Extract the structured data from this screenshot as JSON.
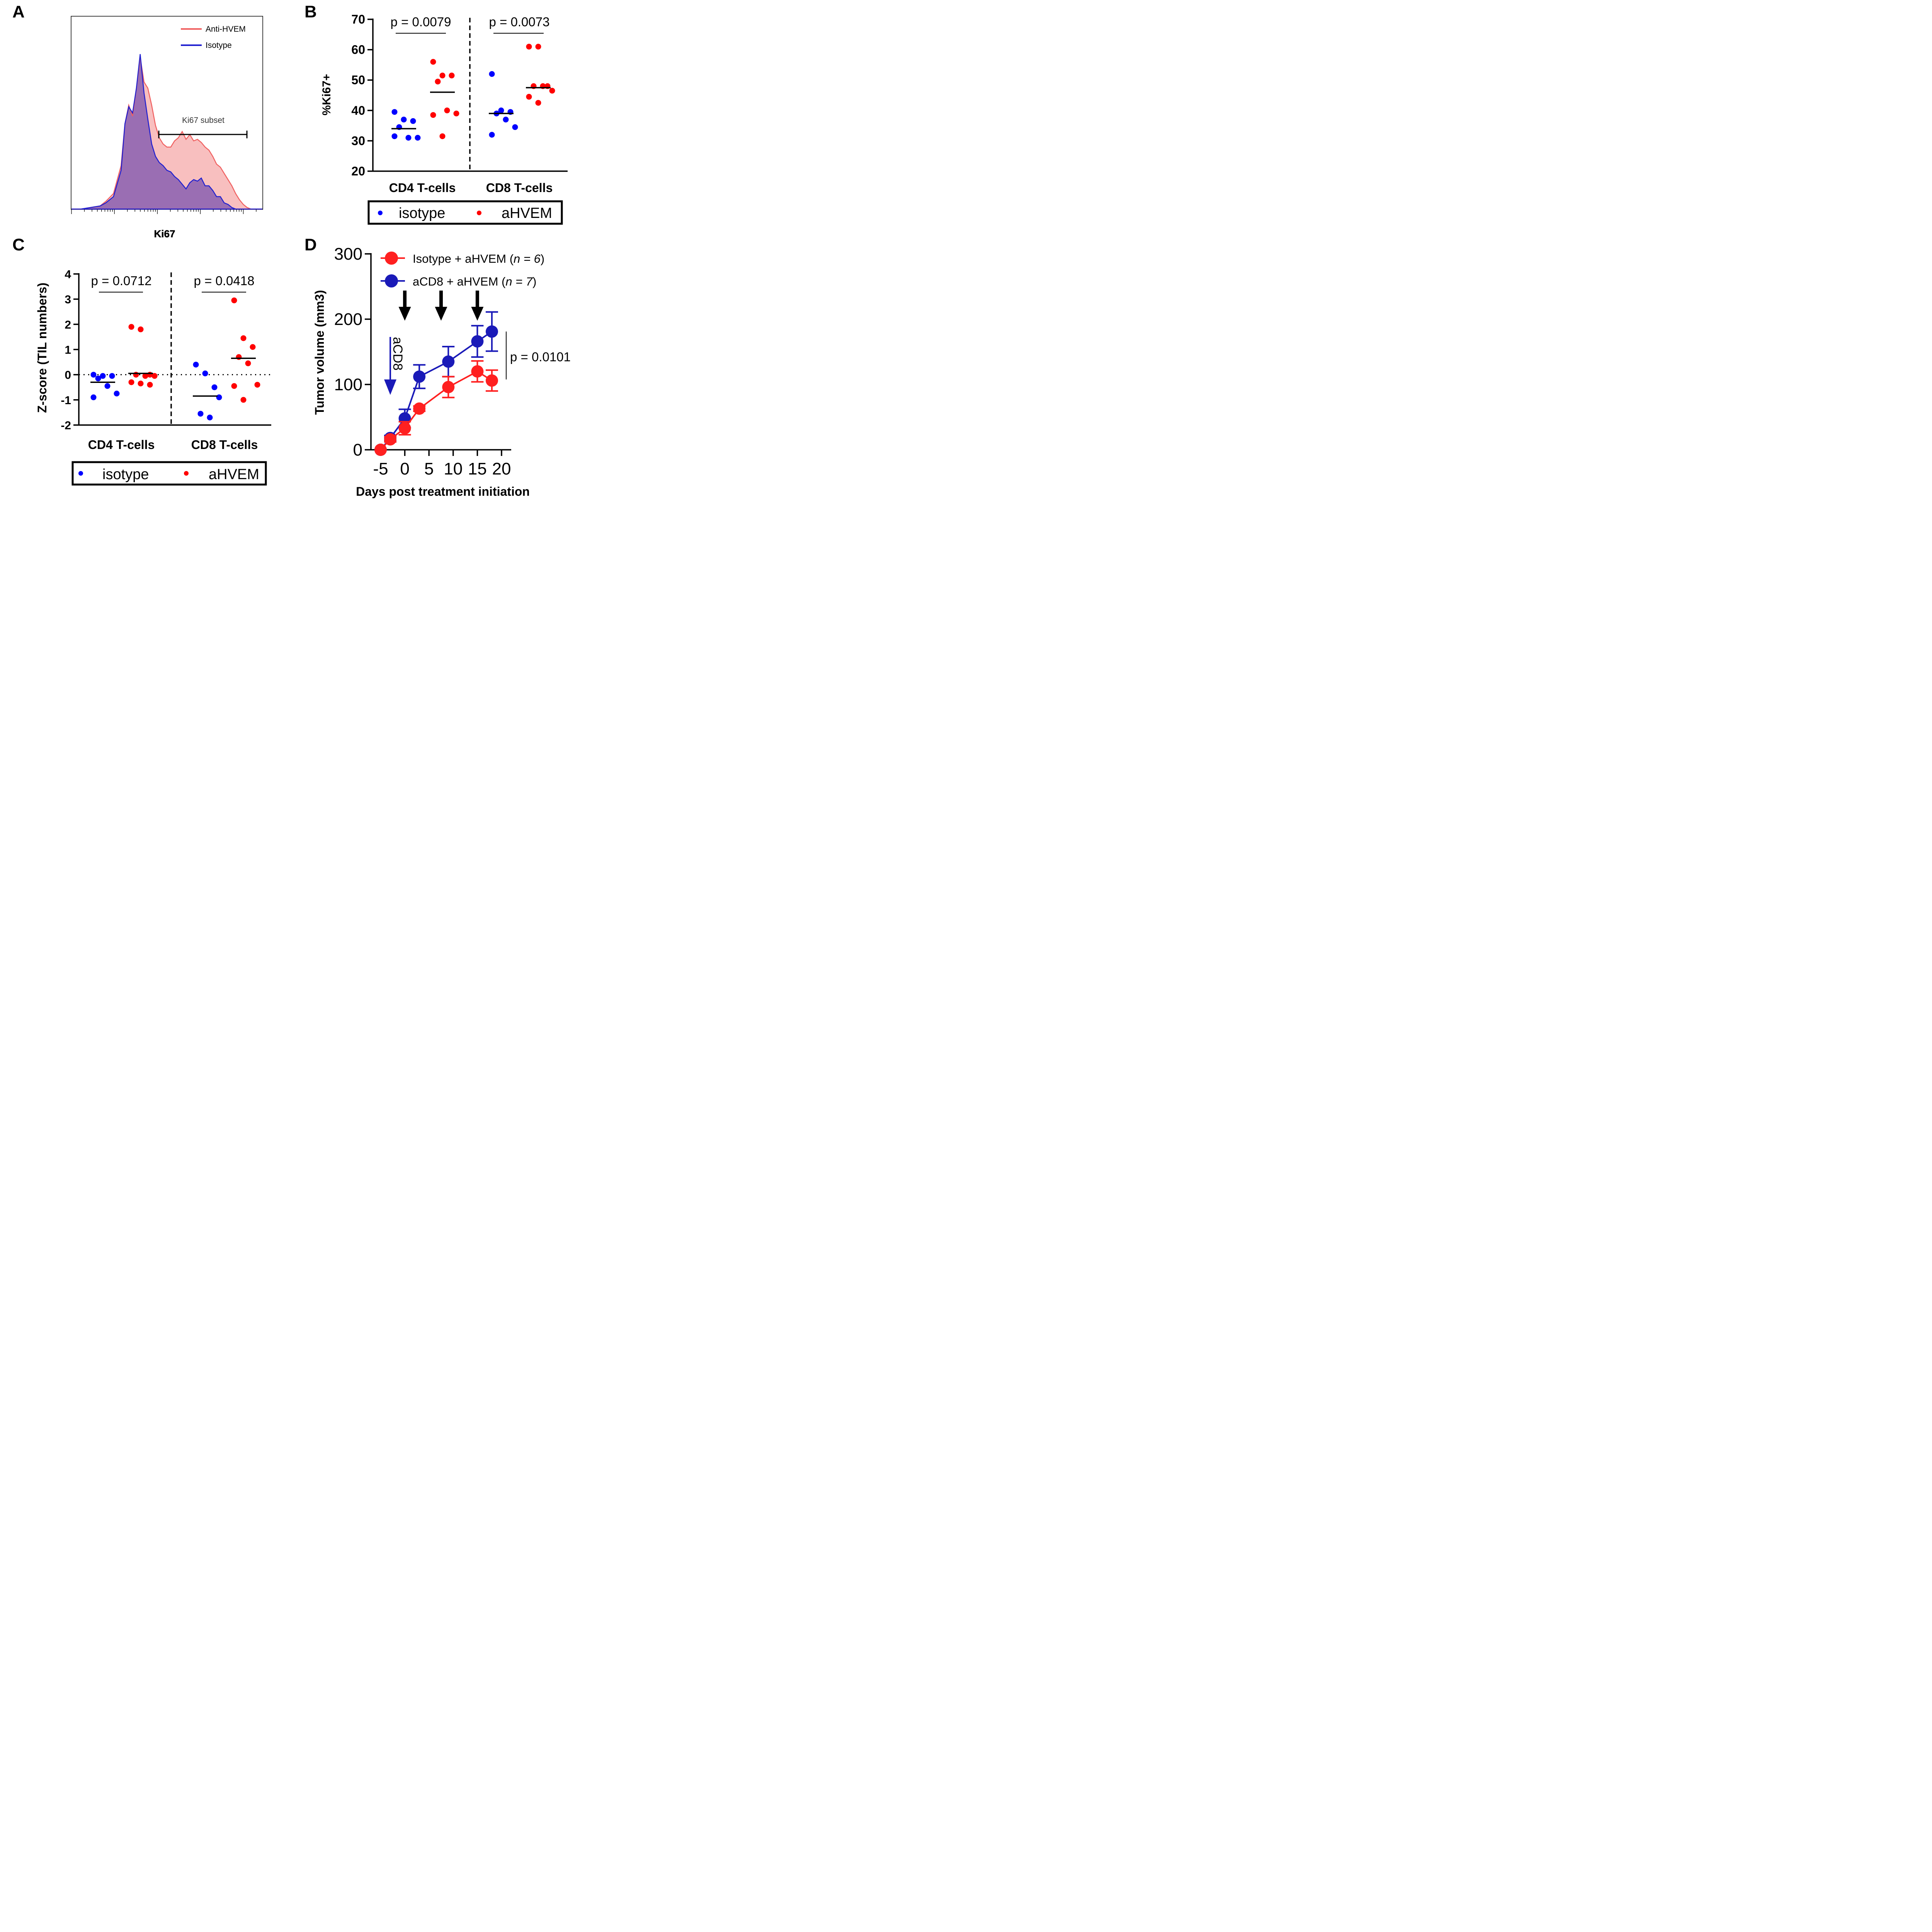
{
  "figure_labels": {
    "a": "A",
    "b": "B",
    "c": "C",
    "d": "D"
  },
  "colors": {
    "isotype": "#0000ff",
    "ahvem": "#ff0000",
    "histo_anti": "#f06060",
    "histo_iso": "#2020d0",
    "overlap": "#8a5fb0",
    "d_red": "#ff2020",
    "d_blue": "#1a1ab8"
  },
  "chart_data": [
    {
      "panel": "A",
      "type": "area",
      "xlabel": "Ki67",
      "legend": [
        "Anti-HVEM",
        "Isotype"
      ],
      "annotation": "Ki67 subset",
      "series": [
        {
          "name": "Anti-HVEM",
          "x": [
            0,
            5,
            10,
            15,
            18,
            22,
            26,
            28,
            30,
            32,
            34,
            36,
            38,
            40,
            42,
            44,
            46,
            48,
            50,
            52,
            54,
            56,
            58,
            60,
            62,
            64,
            66,
            68,
            70,
            72,
            74,
            76,
            78,
            80,
            82,
            84,
            86,
            88,
            90,
            92,
            94,
            96,
            100
          ],
          "y": [
            0,
            0,
            1,
            2,
            5,
            10,
            28,
            55,
            67,
            60,
            78,
            98,
            82,
            78,
            67,
            54,
            46,
            42,
            40,
            40,
            44,
            46,
            50,
            45,
            48,
            44,
            45,
            43,
            40,
            38,
            34,
            29,
            27,
            23,
            19,
            15,
            10,
            6,
            3,
            1,
            0,
            0,
            0
          ]
        },
        {
          "name": "Isotype",
          "x": [
            0,
            5,
            10,
            15,
            18,
            22,
            26,
            28,
            30,
            32,
            34,
            36,
            38,
            40,
            42,
            44,
            46,
            48,
            50,
            52,
            54,
            56,
            58,
            60,
            62,
            64,
            66,
            68,
            70,
            72,
            74,
            76,
            78,
            80,
            82,
            84,
            86,
            88,
            90,
            92,
            94,
            96,
            100
          ],
          "y": [
            0,
            0,
            1,
            2,
            4,
            8,
            25,
            55,
            66,
            62,
            78,
            100,
            75,
            58,
            42,
            34,
            30,
            28,
            25,
            24,
            21,
            19,
            16,
            13,
            17,
            19,
            18,
            20,
            15,
            15,
            12,
            8,
            8,
            4,
            3,
            1,
            0,
            0,
            0,
            0,
            0,
            0,
            0
          ]
        }
      ]
    },
    {
      "panel": "B",
      "type": "scatter",
      "ylabel": "%Ki67+",
      "ylim": [
        20,
        70
      ],
      "yticks": [
        "20",
        "30",
        "40",
        "50",
        "60",
        "70"
      ],
      "categories": [
        "CD4 T-cells",
        "CD8 T-cells"
      ],
      "pvalues": [
        "p = 0.0079",
        "p = 0.0073"
      ],
      "legend": [
        "isotype",
        "aHVEM"
      ],
      "series": [
        {
          "name": "isotype",
          "group": 0,
          "values": [
            39.5,
            37.0,
            36.5,
            34.5,
            31.0,
            31.0,
            31.5
          ],
          "median": 34
        },
        {
          "name": "aHVEM",
          "group": 0,
          "values": [
            56.0,
            51.5,
            51.5,
            49.5,
            40.0,
            39.0,
            38.5,
            31.5
          ],
          "median": 46
        },
        {
          "name": "isotype",
          "group": 1,
          "values": [
            52.0,
            40.0,
            39.5,
            39.0,
            37.0,
            34.5,
            32.0
          ],
          "median": 39
        },
        {
          "name": "aHVEM",
          "group": 1,
          "values": [
            61.0,
            61.0,
            48.0,
            48.0,
            48.0,
            46.5,
            44.5,
            42.5
          ],
          "median": 47.5
        }
      ]
    },
    {
      "panel": "C",
      "type": "scatter",
      "ylabel": "Z-score (TIL numbers)",
      "ylim": [
        -2,
        4
      ],
      "yticks": [
        "-2",
        "-1",
        "0",
        "1",
        "2",
        "3",
        "4"
      ],
      "categories": [
        "CD4 T-cells",
        "CD8 T-cells"
      ],
      "pvalues": [
        "p = 0.0712",
        "p = 0.0418"
      ],
      "legend": [
        "isotype",
        "aHVEM"
      ],
      "series": [
        {
          "name": "isotype",
          "group": 0,
          "values": [
            0.0,
            -0.05,
            -0.05,
            -0.15,
            -0.45,
            -0.75,
            -0.9
          ],
          "median": -0.3
        },
        {
          "name": "aHVEM",
          "group": 0,
          "values": [
            1.9,
            1.8,
            0.0,
            0.0,
            -0.05,
            -0.05,
            -0.3,
            -0.35,
            -0.4
          ],
          "median": 0.05
        },
        {
          "name": "isotype",
          "group": 1,
          "values": [
            0.4,
            0.05,
            -0.5,
            -1.55,
            -1.7,
            -0.9
          ],
          "median": -0.85
        },
        {
          "name": "aHVEM",
          "group": 1,
          "values": [
            2.95,
            1.45,
            1.1,
            0.7,
            0.45,
            -0.4,
            -0.45,
            -1.0
          ],
          "median": 0.65
        }
      ]
    },
    {
      "panel": "D",
      "type": "line",
      "xlabel": "Days post treatment initiation",
      "ylabel": "Tumor volume (mm3)",
      "xlim": [
        -5,
        22
      ],
      "ylim": [
        0,
        300
      ],
      "xticks": [
        "-5",
        "0",
        "5",
        "10",
        "15",
        "20"
      ],
      "yticks": [
        "0",
        "100",
        "200",
        "300"
      ],
      "pvalue": "p = 0.0101",
      "arrow_label": "aCD8",
      "treatment_arrows_days": [
        0,
        7.5,
        15
      ],
      "aCD8_arrow_day": -3,
      "series": [
        {
          "name": "Isotype + aHVEM",
          "n": "n = 6",
          "x": [
            -5,
            -3,
            0,
            3,
            9,
            15,
            18
          ],
          "y": [
            0,
            16,
            33,
            63,
            96,
            120,
            106
          ],
          "err": [
            0,
            4,
            10,
            4,
            16,
            16,
            16
          ]
        },
        {
          "name": "aCD8 + aHVEM",
          "n": "n = 7",
          "x": [
            -5,
            -3,
            0,
            3,
            9,
            15,
            18
          ],
          "y": [
            0,
            18,
            48,
            112,
            135,
            166,
            181
          ],
          "err": [
            0,
            4,
            14,
            18,
            23,
            24,
            30
          ]
        }
      ]
    }
  ]
}
